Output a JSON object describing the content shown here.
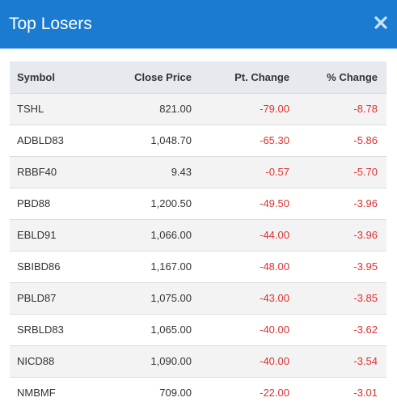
{
  "modal": {
    "title": "Top Losers",
    "close_icon": "close-icon"
  },
  "table": {
    "headers": [
      "Symbol",
      "Close Price",
      "Pt. Change",
      "% Change"
    ],
    "rows": [
      {
        "symbol": "TSHL",
        "close": "821.00",
        "pt": "-79.00",
        "pct": "-8.78"
      },
      {
        "symbol": "ADBLD83",
        "close": "1,048.70",
        "pt": "-65.30",
        "pct": "-5.86"
      },
      {
        "symbol": "RBBF40",
        "close": "9.43",
        "pt": "-0.57",
        "pct": "-5.70"
      },
      {
        "symbol": "PBD88",
        "close": "1,200.50",
        "pt": "-49.50",
        "pct": "-3.96"
      },
      {
        "symbol": "EBLD91",
        "close": "1,066.00",
        "pt": "-44.00",
        "pct": "-3.96"
      },
      {
        "symbol": "SBIBD86",
        "close": "1,167.00",
        "pt": "-48.00",
        "pct": "-3.95"
      },
      {
        "symbol": "PBLD87",
        "close": "1,075.00",
        "pt": "-43.00",
        "pct": "-3.85"
      },
      {
        "symbol": "SRBLD83",
        "close": "1,065.00",
        "pt": "-40.00",
        "pct": "-3.62"
      },
      {
        "symbol": "NICD88",
        "close": "1,090.00",
        "pt": "-40.00",
        "pct": "-3.54"
      },
      {
        "symbol": "NMBMF",
        "close": "709.00",
        "pt": "-22.00",
        "pct": "-3.01"
      }
    ]
  },
  "colors": {
    "header_bg": "#1b7bd1",
    "negative": "#e03030",
    "table_head_bg": "#e6e9ed"
  }
}
